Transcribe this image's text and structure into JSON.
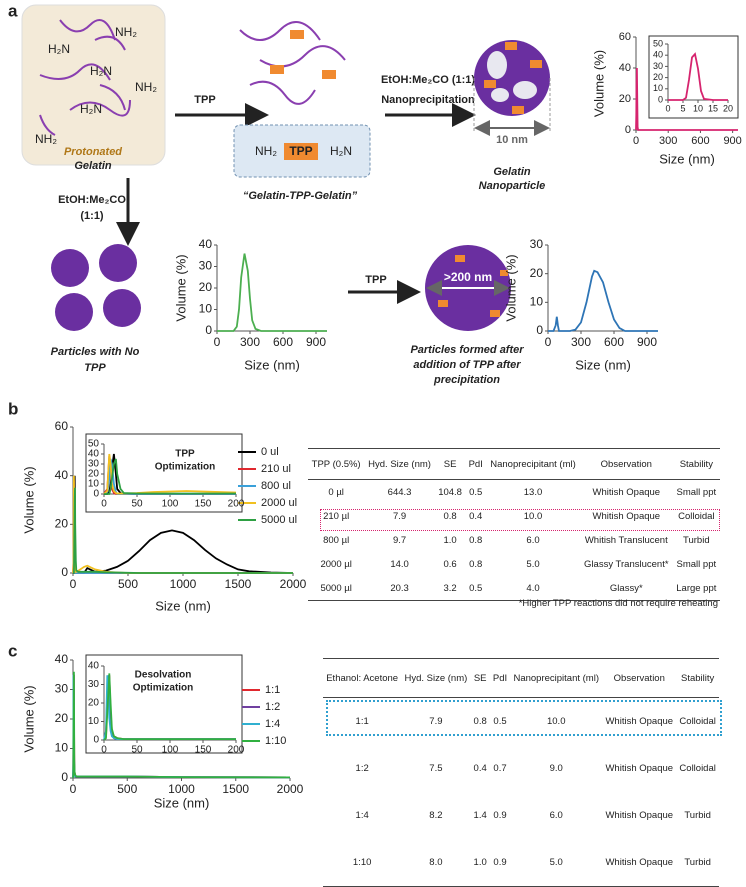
{
  "panel_labels": [
    "a",
    "b",
    "c"
  ],
  "diagram": {
    "protonated_gelatin": [
      "Protonated",
      "Gelatin"
    ],
    "amines": [
      "H₂N",
      "NH₂",
      "H₂N",
      "NH₂",
      "H₂N",
      "NH₂"
    ],
    "tpp_arrow": "TPP",
    "complex_box": [
      "NH₂",
      "TPP",
      "H₂N"
    ],
    "complex_label": "“Gelatin-TPP-Gelatin”",
    "solvent": "EtOH:Me₂CO (1:1)",
    "nanoprecipitation": "Nanoprecipitation",
    "np_size": "10 nm",
    "np_label": [
      "Gelatin",
      "Nanoparticle"
    ],
    "solvent_down": [
      "EtOH:Me₂CO",
      "(1:1)"
    ],
    "no_tpp": [
      "Particles with No",
      "TPP"
    ],
    "tpp_arrow2": "TPP",
    "large_size": ">200 nm",
    "after_tpp": [
      "Particles formed after",
      "addition of TPP after",
      "precipitation"
    ]
  },
  "chart_data": [
    {
      "type": "line",
      "x_label": "Size (nm)",
      "y_label": "Volume (%)",
      "xlim": [
        0,
        950
      ],
      "xticks": [
        0,
        300,
        600,
        900
      ],
      "ylim": [
        0,
        60
      ],
      "yticks": [
        0,
        20,
        40,
        60
      ],
      "x": [
        0,
        3,
        5,
        8,
        10,
        15,
        20,
        50,
        100,
        300,
        600,
        950
      ],
      "series": [
        {
          "color": "#d6246e",
          "values": [
            0,
            10,
            30,
            40,
            28,
            2,
            0,
            0,
            0,
            0,
            0,
            0
          ]
        }
      ]
    },
    {
      "type": "line",
      "xlim": [
        0,
        20
      ],
      "xticks": [
        0,
        5,
        10,
        15,
        20
      ],
      "ylim": [
        0,
        50
      ],
      "yticks": [
        0,
        10,
        20,
        30,
        40,
        50
      ],
      "x": [
        0,
        5,
        6,
        7,
        8,
        9,
        10,
        11,
        12,
        15,
        20
      ],
      "series": [
        {
          "color": "#d6246e",
          "values": [
            0,
            0,
            2,
            18,
            38,
            41,
            28,
            8,
            1,
            0,
            0
          ]
        }
      ]
    },
    {
      "type": "line",
      "x_label": "Size (nm)",
      "y_label": "Volume (%)",
      "xlim": [
        0,
        1000
      ],
      "xticks": [
        0,
        300,
        600,
        900
      ],
      "ylim": [
        0,
        40
      ],
      "yticks": [
        0,
        10,
        20,
        30,
        40
      ],
      "x": [
        0,
        150,
        180,
        200,
        220,
        250,
        280,
        300,
        320,
        350,
        400,
        1000
      ],
      "series": [
        {
          "color": "#4caf50",
          "values": [
            0,
            0,
            2,
            10,
            25,
            36,
            28,
            15,
            5,
            1,
            0,
            0
          ]
        }
      ]
    },
    {
      "type": "line",
      "x_label": "Size (nm)",
      "y_label": "Volume (%)",
      "xlim": [
        0,
        1000
      ],
      "xticks": [
        0,
        300,
        600,
        900
      ],
      "ylim": [
        0,
        30
      ],
      "yticks": [
        0,
        10,
        20,
        30
      ],
      "x": [
        0,
        50,
        70,
        80,
        90,
        100,
        150,
        200,
        250,
        300,
        350,
        400,
        420,
        450,
        500,
        550,
        600,
        650,
        700,
        1000
      ],
      "series": [
        {
          "color": "#2e75b6",
          "values": [
            0,
            0,
            2,
            5,
            2,
            0,
            0,
            0,
            0.5,
            3,
            10,
            19,
            21,
            20.5,
            17,
            10,
            4,
            1,
            0,
            0
          ]
        }
      ]
    },
    {
      "type": "line",
      "x_label": "Size (nm)",
      "y_label": "Volume (%)",
      "xlim": [
        0,
        2000
      ],
      "xticks": [
        0,
        500,
        1000,
        1500,
        2000
      ],
      "ylim": [
        0,
        60
      ],
      "yticks": [
        0,
        20,
        40,
        60
      ],
      "legend": "upper right",
      "x": [
        0,
        5,
        8,
        10,
        12,
        15,
        18,
        20,
        25,
        30,
        50,
        100,
        130,
        200,
        300,
        400,
        500,
        600,
        700,
        800,
        900,
        1000,
        1100,
        1200,
        1300,
        1400,
        1500,
        1600,
        1800,
        2000
      ],
      "series": [
        {
          "name": "0 ul",
          "color": "#000000",
          "values": [
            0,
            0,
            2,
            10,
            25,
            40,
            20,
            5,
            1,
            0,
            0,
            0,
            2,
            0.5,
            1,
            2.5,
            5,
            9,
            13.5,
            16.5,
            17.5,
            16.5,
            13.5,
            9.5,
            6,
            3.5,
            1.5,
            0.7,
            0.2,
            0
          ]
        },
        {
          "name": "210 ul",
          "color": "#e0282e",
          "values": [
            0,
            5,
            38,
            20,
            5,
            1,
            0,
            0,
            0,
            0,
            0,
            0,
            0,
            0,
            0,
            0,
            0,
            0,
            0,
            0,
            0,
            0,
            0,
            0,
            0,
            0,
            0,
            0,
            0,
            0
          ]
        },
        {
          "name": "800 ul",
          "color": "#3aa0d9",
          "values": [
            0,
            2,
            15,
            35,
            30,
            10,
            2,
            0,
            0,
            0,
            0,
            0,
            0,
            0,
            0,
            0,
            0,
            0,
            0,
            0,
            0,
            0,
            0,
            0,
            0,
            0,
            0,
            0,
            0,
            0
          ]
        },
        {
          "name": "2000 ul",
          "color": "#f0c020",
          "values": [
            0,
            3,
            40,
            30,
            10,
            3,
            1,
            0.5,
            0.5,
            0.5,
            1,
            2.5,
            3,
            1.5,
            0.5,
            0.2,
            0,
            0,
            0,
            0,
            0,
            0,
            0,
            0,
            0,
            0,
            0,
            0,
            0,
            0
          ]
        },
        {
          "name": "5000 ul",
          "color": "#2ea043",
          "values": [
            0,
            0,
            0,
            5,
            15,
            30,
            35,
            20,
            5,
            1,
            0.5,
            0.5,
            0.5,
            0.5,
            0.3,
            0.2,
            0.1,
            0,
            0,
            0,
            0,
            0,
            0,
            0,
            0,
            0,
            0,
            0,
            0,
            0
          ]
        }
      ]
    },
    {
      "type": "line",
      "title": [
        "TPP",
        "Optimization"
      ],
      "xlim": [
        0,
        200
      ],
      "xticks": [
        0,
        50,
        100,
        150,
        200
      ],
      "ylim": [
        0,
        50
      ],
      "yticks": [
        0,
        10,
        20,
        30,
        40,
        50
      ],
      "x": [
        0,
        5,
        8,
        10,
        12,
        15,
        18,
        20,
        25,
        30,
        50,
        75,
        100,
        125,
        150,
        175,
        200
      ],
      "series": [
        {
          "color": "#000000",
          "values": [
            0,
            0,
            2,
            10,
            25,
            40,
            20,
            5,
            1,
            0,
            0,
            0,
            0,
            0,
            0,
            0,
            0
          ]
        },
        {
          "color": "#e0282e",
          "values": [
            0,
            5,
            38,
            20,
            5,
            1,
            0,
            0,
            0,
            0,
            0,
            0,
            0,
            0,
            0,
            0,
            0
          ]
        },
        {
          "color": "#3aa0d9",
          "values": [
            0,
            2,
            15,
            35,
            30,
            10,
            2,
            0,
            0,
            0,
            0,
            0,
            0,
            0,
            0,
            0,
            0
          ]
        },
        {
          "color": "#f0c020",
          "values": [
            0,
            3,
            40,
            30,
            10,
            3,
            1,
            0.5,
            0.5,
            0.5,
            1,
            2,
            2.5,
            3,
            2.5,
            2,
            1.5
          ]
        },
        {
          "color": "#2ea043",
          "values": [
            0,
            0,
            0,
            5,
            15,
            30,
            35,
            20,
            5,
            1,
            0.5,
            0.5,
            0.5,
            0.5,
            0.5,
            0.5,
            0.5
          ]
        }
      ]
    },
    {
      "type": "line",
      "x_label": "Size (nm)",
      "y_label": "Volume (%)",
      "xlim": [
        0,
        2000
      ],
      "xticks": [
        0,
        500,
        1000,
        1500,
        2000
      ],
      "ylim": [
        0,
        40
      ],
      "yticks": [
        0,
        10,
        20,
        30,
        40
      ],
      "legend": "upper right",
      "x": [
        0,
        3,
        5,
        7,
        8,
        10,
        12,
        15,
        20,
        30,
        50,
        100,
        200,
        500,
        1000,
        2000
      ],
      "series": [
        {
          "name": "1:1",
          "color": "#e0282e",
          "values": [
            0,
            2,
            20,
            30,
            35,
            15,
            5,
            2,
            1,
            0.5,
            0.5,
            0.5,
            0.5,
            0.5,
            0.3,
            0.2
          ]
        },
        {
          "name": "1:2",
          "color": "#7040a0",
          "values": [
            0,
            3,
            25,
            35,
            20,
            8,
            3,
            1,
            0.5,
            0.5,
            0.5,
            0.5,
            0.5,
            0.5,
            0.3,
            0.2
          ]
        },
        {
          "name": "1:4",
          "color": "#30b0d0",
          "values": [
            0,
            5,
            35,
            25,
            12,
            5,
            2,
            1,
            0.5,
            0.5,
            0.5,
            0.5,
            0.5,
            0.5,
            0.3,
            0.2
          ]
        },
        {
          "name": "1:10",
          "color": "#30b040",
          "values": [
            0,
            1,
            15,
            28,
            36,
            20,
            6,
            2,
            1,
            0.5,
            0.5,
            0.5,
            0.5,
            0.5,
            0.3,
            0.2
          ]
        }
      ]
    },
    {
      "type": "line",
      "title": [
        "Desolvation",
        "Optimization"
      ],
      "xlim": [
        0,
        200
      ],
      "xticks": [
        0,
        50,
        100,
        150,
        200
      ],
      "ylim": [
        0,
        40
      ],
      "yticks": [
        0,
        10,
        20,
        30,
        40
      ],
      "x": [
        0,
        3,
        5,
        7,
        8,
        10,
        12,
        15,
        20,
        30,
        50,
        100,
        150,
        200
      ],
      "series": [
        {
          "color": "#e0282e",
          "values": [
            0,
            2,
            20,
            30,
            35,
            15,
            5,
            2,
            1,
            0.5,
            0.5,
            0.5,
            0.5,
            0.5
          ]
        },
        {
          "color": "#7040a0",
          "values": [
            0,
            3,
            25,
            35,
            20,
            8,
            3,
            1,
            0.5,
            0.5,
            0.5,
            0.5,
            0.5,
            0.5
          ]
        },
        {
          "color": "#30b0d0",
          "values": [
            0,
            5,
            35,
            25,
            12,
            5,
            2,
            1,
            0.5,
            0.5,
            0.5,
            0.5,
            0.5,
            0.5
          ]
        },
        {
          "color": "#30b040",
          "values": [
            0,
            1,
            15,
            28,
            36,
            20,
            6,
            2,
            1,
            0.5,
            0.5,
            0.5,
            0.5,
            0.5
          ]
        }
      ]
    }
  ],
  "table_b": {
    "header": [
      "TPP (0.5%)",
      "Hyd. Size (nm)",
      "SE",
      "PdI",
      "Nanoprecipitant (ml)",
      "Observation",
      "Stability"
    ],
    "rows": [
      [
        "0 µl",
        "644.3",
        "104.8",
        "0.5",
        "13.0",
        "Whitish Opaque",
        "Small ppt"
      ],
      [
        "210 µl",
        "7.9",
        "0.8",
        "0.4",
        "10.0",
        "Whitish Opaque",
        "Colloidal"
      ],
      [
        "800 µl",
        "9.7",
        "1.0",
        "0.8",
        "6.0",
        "Whitish Translucent",
        "Turbid"
      ],
      [
        "2000 µl",
        "14.0",
        "0.6",
        "0.8",
        "5.0",
        "Glassy Translucent*",
        "Small ppt"
      ],
      [
        "5000 µl",
        "20.3",
        "3.2",
        "0.5",
        "4.0",
        "Glassy*",
        "Large ppt"
      ]
    ],
    "footnote": "*Higher TPP reactions did not require reheating"
  },
  "table_c": {
    "header": [
      "Ethanol: Acetone",
      "Hyd. Size (nm)",
      "SE",
      "PdI",
      "Nanoprecipitant (ml)",
      "Observation",
      "Stability"
    ],
    "rows": [
      [
        "1:1",
        "7.9",
        "0.8",
        "0.5",
        "10.0",
        "Whitish Opaque",
        "Colloidal"
      ],
      [
        "1:2",
        "7.5",
        "0.4",
        "0.7",
        "9.0",
        "Whitish Opaque",
        "Colloidal"
      ],
      [
        "1:4",
        "8.2",
        "1.4",
        "0.9",
        "6.0",
        "Whitish Opaque",
        "Turbid"
      ],
      [
        "1:10",
        "8.0",
        "1.0",
        "0.9",
        "5.0",
        "Whitish Opaque",
        "Turbid"
      ]
    ]
  }
}
